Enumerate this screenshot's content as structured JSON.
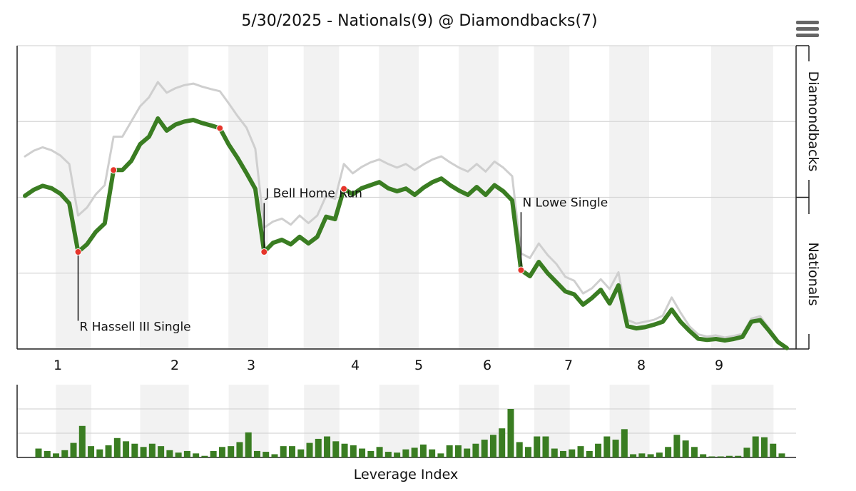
{
  "chart_data": [
    {
      "type": "line",
      "title": "5/30/2025 - Nationals(9) @ Diamondbacks(7)",
      "ylabel_top": "Diamondbacks",
      "ylabel_bottom": "Nationals",
      "ylim": [
        0,
        100
      ],
      "grid": true,
      "innings": [
        {
          "label": "1",
          "start": 0,
          "end": 8
        },
        {
          "label": "2",
          "start": 8,
          "end": 19
        },
        {
          "label": "3",
          "start": 19,
          "end": 28
        },
        {
          "label": "4",
          "start": 28,
          "end": 36
        },
        {
          "label": "5",
          "start": 36,
          "end": 45
        },
        {
          "label": "6",
          "start": 45,
          "end": 54
        },
        {
          "label": "7",
          "start": 54,
          "end": 62
        },
        {
          "label": "8",
          "start": 62,
          "end": 71
        },
        {
          "label": "9",
          "start": 71,
          "end": 85
        }
      ],
      "series": [
        {
          "color": "#3a7d22",
          "values": [
            50.5,
            52.5,
            53.8,
            53,
            51.2,
            48,
            32,
            34.5,
            38.6,
            41.4,
            59,
            59,
            62,
            67.5,
            70,
            76,
            72,
            74,
            75,
            75.5,
            74.5,
            73.7,
            72.8,
            67.4,
            63,
            58,
            52.8,
            32,
            35,
            36,
            34.5,
            37,
            34.8,
            37,
            43.6,
            42.8,
            52.8,
            51,
            53,
            54,
            55,
            53,
            52,
            52.9,
            50.8,
            53.2,
            55,
            56.2,
            54,
            52.2,
            50.8,
            53.4,
            50.8,
            54,
            52,
            49,
            26,
            24,
            28.7,
            25,
            22,
            19,
            18,
            14.6,
            16.8,
            19.5,
            15,
            21,
            7.5,
            6.8,
            7.2,
            8,
            9,
            13,
            9,
            6,
            3.4,
            3,
            3.3,
            2.8,
            3.3,
            4,
            9,
            9.5,
            6,
            2.3,
            0.3
          ]
        },
        {
          "color": "#cfcfcf",
          "values": [
            63.5,
            65.4,
            66.5,
            65.5,
            63.8,
            61,
            44,
            46.6,
            51,
            54,
            70,
            70,
            75,
            80,
            83,
            88,
            84.5,
            86,
            87,
            87.5,
            86.5,
            85.7,
            85,
            81,
            76.8,
            73,
            66,
            40,
            42,
            43,
            41,
            44,
            41.5,
            44,
            50.5,
            49.5,
            61,
            57.9,
            60,
            61.5,
            62.5,
            61,
            59.8,
            61,
            59,
            60.9,
            62.5,
            63.5,
            61.5,
            59.8,
            58.5,
            61,
            58.5,
            61.8,
            59.8,
            57,
            31.5,
            30,
            34.8,
            31,
            28,
            23.8,
            22.5,
            18.3,
            20,
            23,
            19.8,
            25.3,
            9.6,
            8.4,
            9,
            9.6,
            11,
            17,
            12,
            7.5,
            4.8,
            4.1,
            4.5,
            3.8,
            4.3,
            5,
            10,
            10.8,
            6.8,
            2.8,
            0.5
          ]
        }
      ],
      "annotations": [
        {
          "index": 6,
          "text": "R Hassell III Single",
          "label_y": 6,
          "label_dx": 2
        },
        {
          "index": 10,
          "text": ""
        },
        {
          "index": 22,
          "text": ""
        },
        {
          "index": 27,
          "text": "J Bell Home Run",
          "label_y": 50,
          "label_dx": 2
        },
        {
          "index": 36,
          "text": ""
        },
        {
          "index": 56,
          "text": "N Lowe Single",
          "label_y": 47,
          "label_dx": 2
        }
      ]
    },
    {
      "type": "bar",
      "title": "Leverage Index",
      "values": [
        1.1,
        0.8,
        0.5,
        0.9,
        1.8,
        3.9,
        1.4,
        1.0,
        1.5,
        2.4,
        2.0,
        1.7,
        1.3,
        1.7,
        1.4,
        0.9,
        0.6,
        0.8,
        0.5,
        0.2,
        0.8,
        1.3,
        1.4,
        1.9,
        3.1,
        0.8,
        0.7,
        0.4,
        1.4,
        1.4,
        1.0,
        1.8,
        2.3,
        2.6,
        2.0,
        1.7,
        1.5,
        1.1,
        0.8,
        1.3,
        0.7,
        0.6,
        1.0,
        1.2,
        1.6,
        1.0,
        0.5,
        1.5,
        1.5,
        1.1,
        1.7,
        2.2,
        2.8,
        3.6,
        6.0,
        1.9,
        1.3,
        2.6,
        2.6,
        1.1,
        0.8,
        1.0,
        1.4,
        0.8,
        1.7,
        2.6,
        2.2,
        3.5,
        0.4,
        0.5,
        0.4,
        0.6,
        1.3,
        2.8,
        2.1,
        1.3,
        0.4,
        0.1,
        0.1,
        0.2,
        0.2,
        1.2,
        2.6,
        2.5,
        1.7,
        0.5
      ],
      "color": "#3a7d22"
    }
  ]
}
